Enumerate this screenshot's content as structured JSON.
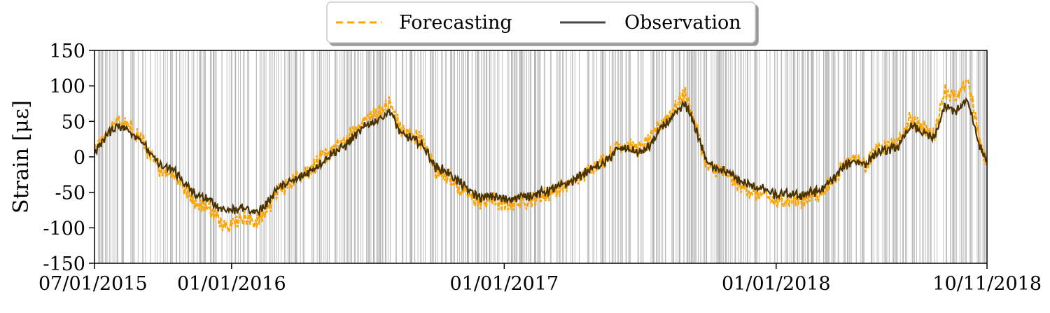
{
  "chart_data": {
    "type": "line",
    "title": "",
    "xlabel": "",
    "ylabel": "Strain [με]",
    "ylim": [
      -150,
      150
    ],
    "xlim": [
      "2015-07-01",
      "2018-10-11"
    ],
    "yticks": [
      {
        "value": -150,
        "label": "-150"
      },
      {
        "value": -100,
        "label": "-100"
      },
      {
        "value": -50,
        "label": "-50"
      },
      {
        "value": 0,
        "label": "0"
      },
      {
        "value": 50,
        "label": "50"
      },
      {
        "value": 100,
        "label": "100"
      },
      {
        "value": 150,
        "label": "150"
      }
    ],
    "xticks": [
      {
        "date": "2015-07-01",
        "label": "07/01/2015"
      },
      {
        "date": "2016-01-01",
        "label": "01/01/2016"
      },
      {
        "date": "2017-01-01",
        "label": "01/01/2017"
      },
      {
        "date": "2018-01-01",
        "label": "01/01/2018"
      },
      {
        "date": "2018-10-11",
        "label": "10/11/2018"
      }
    ],
    "legend": {
      "placement": "top-center",
      "entries": [
        {
          "label": "Forecasting",
          "color": "#ffa500",
          "style": "dashed"
        },
        {
          "label": "Observation",
          "color": "#444444",
          "style": "solid"
        }
      ]
    },
    "grid": false,
    "vertical_marker_lines": true,
    "series": [
      {
        "name": "Observation",
        "color": "#4a3300",
        "x": [
          "2015-07-01",
          "2015-07-15",
          "2015-08-01",
          "2015-08-15",
          "2015-09-01",
          "2015-09-15",
          "2015-10-01",
          "2015-10-15",
          "2015-11-01",
          "2015-11-15",
          "2015-12-01",
          "2015-12-15",
          "2016-01-01",
          "2016-01-15",
          "2016-02-01",
          "2016-02-15",
          "2016-03-01",
          "2016-03-15",
          "2016-04-01",
          "2016-04-15",
          "2016-05-01",
          "2016-05-15",
          "2016-06-01",
          "2016-06-15",
          "2016-07-01",
          "2016-07-15",
          "2016-08-01",
          "2016-08-15",
          "2016-09-01",
          "2016-09-15",
          "2016-10-01",
          "2016-10-15",
          "2016-11-01",
          "2016-11-15",
          "2016-12-01",
          "2016-12-15",
          "2017-01-01",
          "2017-01-15",
          "2017-02-01",
          "2017-02-15",
          "2017-03-01",
          "2017-03-15",
          "2017-04-01",
          "2017-04-15",
          "2017-05-01",
          "2017-05-15",
          "2017-06-01",
          "2017-06-15",
          "2017-07-01",
          "2017-07-15",
          "2017-08-01",
          "2017-08-15",
          "2017-09-01",
          "2017-09-15",
          "2017-10-01",
          "2017-10-15",
          "2017-11-01",
          "2017-11-15",
          "2017-12-01",
          "2017-12-15",
          "2018-01-01",
          "2018-01-15",
          "2018-02-01",
          "2018-02-15",
          "2018-03-01",
          "2018-03-15",
          "2018-04-01",
          "2018-04-15",
          "2018-05-01",
          "2018-05-15",
          "2018-06-01",
          "2018-06-15",
          "2018-07-01",
          "2018-07-15",
          "2018-08-01",
          "2018-08-15",
          "2018-09-01",
          "2018-09-15",
          "2018-10-01",
          "2018-10-11"
        ],
        "values": [
          5,
          28,
          45,
          38,
          25,
          2,
          -15,
          -18,
          -40,
          -55,
          -60,
          -72,
          -75,
          -72,
          -78,
          -70,
          -45,
          -38,
          -30,
          -20,
          -8,
          5,
          15,
          30,
          45,
          52,
          65,
          32,
          25,
          15,
          -15,
          -20,
          -35,
          -48,
          -58,
          -55,
          -60,
          -58,
          -55,
          -52,
          -48,
          -42,
          -35,
          -25,
          -15,
          -10,
          10,
          12,
          5,
          15,
          42,
          55,
          75,
          40,
          -10,
          -15,
          -25,
          -35,
          -42,
          -45,
          -55,
          -52,
          -55,
          -50,
          -48,
          -35,
          -15,
          -5,
          -10,
          5,
          10,
          15,
          45,
          35,
          25,
          70,
          65,
          80,
          15,
          -5
        ]
      },
      {
        "name": "Forecasting",
        "color": "#ffa500",
        "x": [
          "2015-07-01",
          "2015-07-15",
          "2015-08-01",
          "2015-08-15",
          "2015-09-01",
          "2015-09-15",
          "2015-10-01",
          "2015-10-15",
          "2015-11-01",
          "2015-11-15",
          "2015-12-01",
          "2015-12-15",
          "2016-01-01",
          "2016-01-15",
          "2016-02-01",
          "2016-02-15",
          "2016-03-01",
          "2016-03-15",
          "2016-04-01",
          "2016-04-15",
          "2016-05-01",
          "2016-05-15",
          "2016-06-01",
          "2016-06-15",
          "2016-07-01",
          "2016-07-15",
          "2016-08-01",
          "2016-08-15",
          "2016-09-01",
          "2016-09-15",
          "2016-10-01",
          "2016-10-15",
          "2016-11-01",
          "2016-11-15",
          "2016-12-01",
          "2016-12-15",
          "2017-01-01",
          "2017-01-15",
          "2017-02-01",
          "2017-02-15",
          "2017-03-01",
          "2017-03-15",
          "2017-04-01",
          "2017-04-15",
          "2017-05-01",
          "2017-05-15",
          "2017-06-01",
          "2017-06-15",
          "2017-07-01",
          "2017-07-15",
          "2017-08-01",
          "2017-08-15",
          "2017-09-01",
          "2017-09-15",
          "2017-10-01",
          "2017-10-15",
          "2017-11-01",
          "2017-11-15",
          "2017-12-01",
          "2017-12-15",
          "2018-01-01",
          "2018-01-15",
          "2018-02-01",
          "2018-02-15",
          "2018-03-01",
          "2018-03-15",
          "2018-04-01",
          "2018-04-15",
          "2018-05-01",
          "2018-05-15",
          "2018-06-01",
          "2018-06-15",
          "2018-07-01",
          "2018-07-15",
          "2018-08-01",
          "2018-08-15",
          "2018-09-01",
          "2018-09-15",
          "2018-10-01",
          "2018-10-11"
        ],
        "values": [
          8,
          32,
          50,
          42,
          28,
          -2,
          -20,
          -22,
          -48,
          -65,
          -70,
          -90,
          -95,
          -85,
          -92,
          -80,
          -50,
          -40,
          -25,
          -18,
          -2,
          10,
          20,
          38,
          55,
          62,
          75,
          38,
          30,
          20,
          -20,
          -25,
          -45,
          -55,
          -65,
          -60,
          -68,
          -65,
          -62,
          -58,
          -52,
          -45,
          -38,
          -28,
          -12,
          -5,
          15,
          18,
          10,
          22,
          50,
          65,
          90,
          45,
          -15,
          -18,
          -30,
          -42,
          -50,
          -55,
          -65,
          -60,
          -62,
          -55,
          -52,
          -38,
          -12,
          0,
          -12,
          10,
          15,
          20,
          55,
          42,
          30,
          95,
          80,
          110,
          25,
          -10
        ]
      }
    ]
  }
}
